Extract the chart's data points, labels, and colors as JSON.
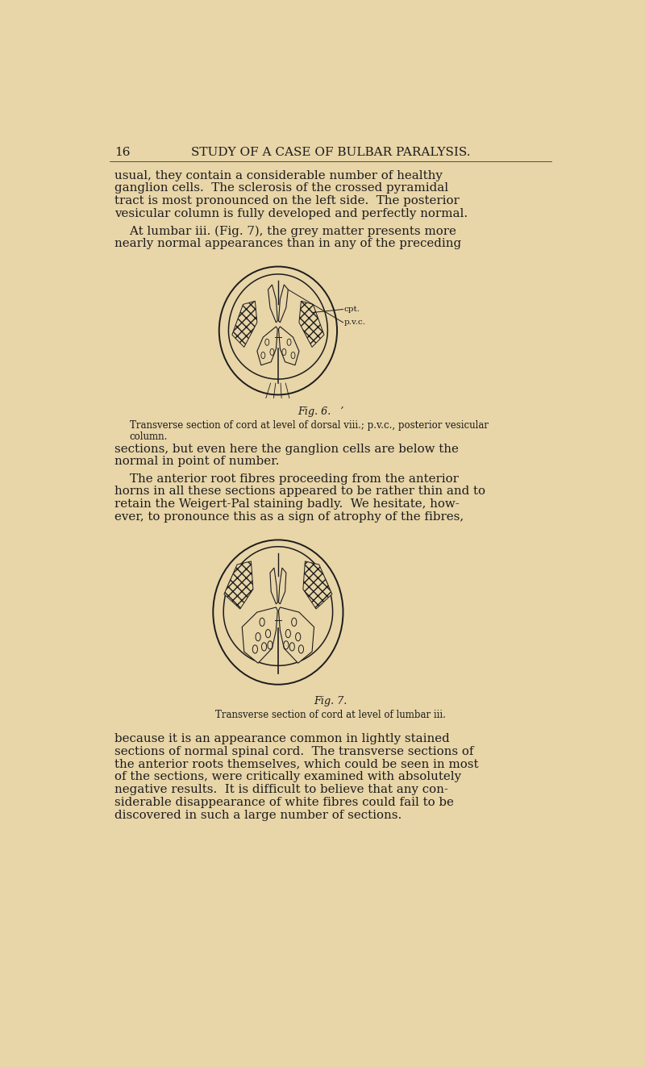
{
  "bg_color": "#e8d5a8",
  "text_color": "#1c1c1c",
  "page_width": 8.0,
  "page_height": 13.23,
  "dpi": 100,
  "header_number": "16",
  "header_title": "STUDY OF A CASE OF BULBAR PARALYSIS.",
  "line1": "usual, they contain a considerable number of healthy",
  "line2": "ganglion cells.  The sclerosis of the crossed pyramidal",
  "line3": "tract is most pronounced on the left side.  The posterior",
  "line4": "vesicular column is fully developed and perfectly normal.",
  "line5": "    At lumbar iii. (Fig. 7), the grey matter presents more",
  "line6": "nearly normal appearances than in any of the preceding",
  "fig6_label": "Fig. 6.",
  "fig6_sub1": "Transverse section of cord at level of dorsal viii.; p.v.c., posterior vesicular",
  "fig6_sub2": "column.",
  "line7": "sections, but even here the ganglion cells are below the",
  "line8": "normal in point of number.",
  "line9": "    The anterior root fibres proceeding from the anterior",
  "line10": "horns in all these sections appeared to be rather thin and to",
  "line11": "retain the Weigert-Pal staining badly.  We hesitate, how-",
  "line12": "ever, to pronounce this as a sign of atrophy of the fibres,",
  "fig7_label": "Fig. 7.",
  "fig7_sub": "Transverse section of cord at level of lumbar iii.",
  "line13": "because it is an appearance common in lightly stained",
  "line14": "sections of normal spinal cord.  The transverse sections of",
  "line15": "the anterior roots themselves, which could be seen in most",
  "line16": "of the sections, were critically examined with absolutely",
  "line17": "negative results.  It is difficult to believe that any con-",
  "line18": "siderable disappearance of white fibres could fail to be",
  "line19": "discovered in such a large number of sections.",
  "lh": 0.0155
}
